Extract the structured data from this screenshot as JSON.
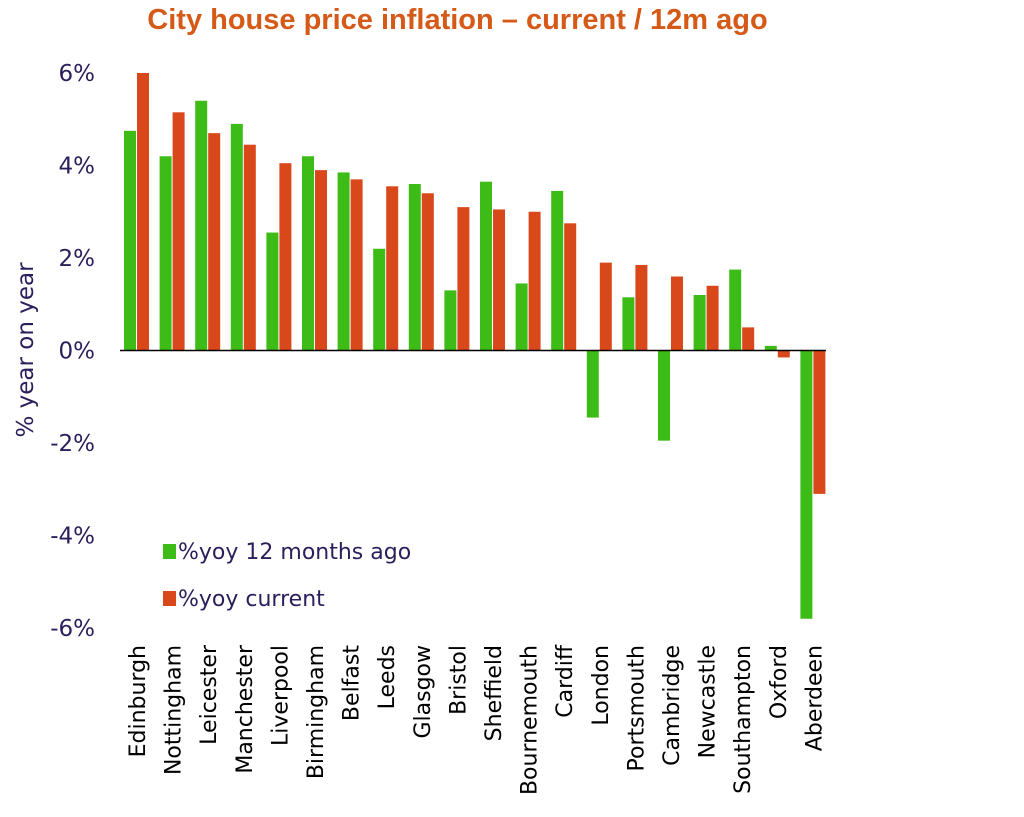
{
  "chart_data": {
    "type": "bar",
    "title": "City house price inflation – current / 12m ago",
    "xlabel": "",
    "ylabel": "% year on year",
    "ylim": [
      -6,
      6
    ],
    "yticks": [
      -6,
      -4,
      -2,
      0,
      2,
      4,
      6
    ],
    "ytick_labels": [
      "-6%",
      "-4%",
      "-2%",
      "0%",
      "2%",
      "4%",
      "6%"
    ],
    "grid": false,
    "legend_position": "lower-left",
    "categories": [
      "Edinburgh",
      "Nottingham",
      "Leicester",
      "Manchester",
      "Liverpool",
      "Birmingham",
      "Belfast",
      "Leeds",
      "Glasgow",
      "Bristol",
      "Sheffield",
      "Bournemouth",
      "Cardiff",
      "London",
      "Portsmouth",
      "Cambridge",
      "Newcastle",
      "Southampton",
      "Oxford",
      "Aberdeen"
    ],
    "series": [
      {
        "name": "%yoy 12 months ago",
        "color": "#3dbb16",
        "values": [
          4.75,
          4.2,
          5.4,
          4.9,
          2.55,
          4.2,
          3.85,
          2.2,
          3.6,
          1.3,
          3.65,
          1.45,
          3.45,
          -1.45,
          1.15,
          -1.95,
          1.2,
          1.75,
          0.1,
          -5.8
        ]
      },
      {
        "name": "%yoy current",
        "color": "#d9481a",
        "values": [
          6.0,
          5.15,
          4.7,
          4.45,
          4.05,
          3.9,
          3.7,
          3.55,
          3.4,
          3.1,
          3.05,
          3.0,
          2.75,
          1.9,
          1.85,
          1.6,
          1.4,
          0.5,
          -0.15,
          -3.1
        ]
      }
    ]
  }
}
